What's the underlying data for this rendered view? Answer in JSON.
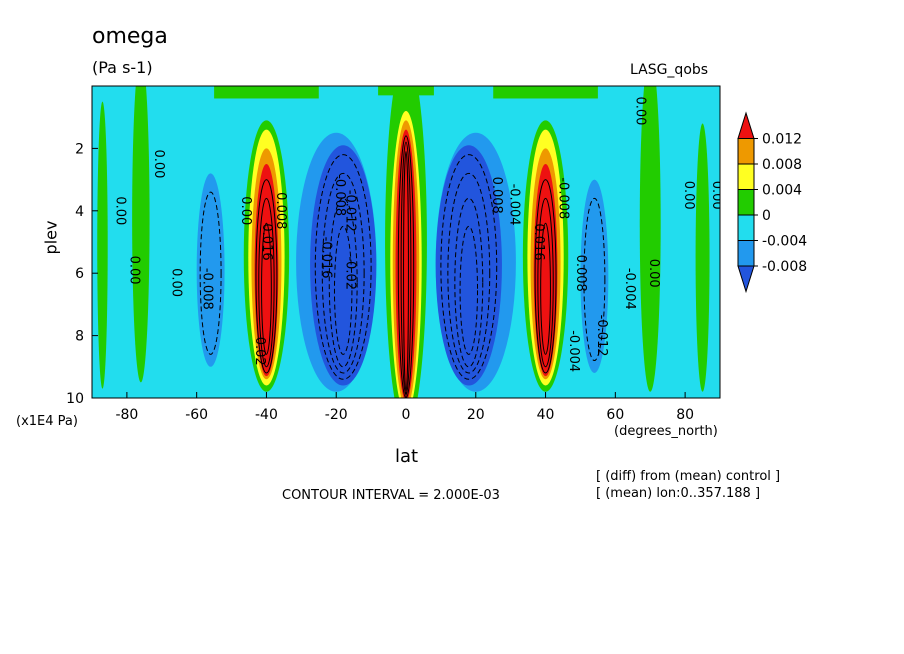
{
  "header": {
    "title": "omega",
    "units": "(Pa s-1)",
    "dataset": "LASG_qobs"
  },
  "footer": {
    "contour_interval": "CONTOUR INTERVAL = 2.000E-03",
    "note_diff": "[ (diff) from (mean) control ]",
    "note_mean": "[ (mean) lon:0..357.188 ]"
  },
  "colors": {
    "red": "#ee1111",
    "orange": "#ee9900",
    "yellow": "#ffff22",
    "green": "#22cc00",
    "cyan": "#22ddee",
    "lightblue": "#2299ee",
    "blue": "#2255dd"
  },
  "chart_data": {
    "type": "heatmap",
    "title": "omega",
    "subtitle": "(Pa s-1)",
    "xlabel": "lat",
    "xunit": "(degrees_north)",
    "ylabel": "plev",
    "yunit": "(x1E4 Pa)",
    "xlim": [
      -90,
      90
    ],
    "ylim": [
      10,
      0
    ],
    "xticks": [
      -80,
      -60,
      -40,
      -20,
      0,
      20,
      40,
      60,
      80
    ],
    "yticks": [
      2,
      4,
      6,
      8,
      10
    ],
    "legend": {
      "position": "right",
      "labels": [
        "0.012",
        "0.008",
        "0.004",
        "0",
        "-0.004",
        "-0.008"
      ],
      "bands": [
        "red",
        "orange",
        "yellow",
        "green",
        "cyan",
        "lightblue",
        "blue"
      ]
    },
    "contour_labels": [
      {
        "text": "0.00",
        "lat": -83,
        "plev": 4.0
      },
      {
        "text": "0.00",
        "lat": -79,
        "plev": 5.9
      },
      {
        "text": "0.00",
        "lat": -72,
        "plev": 2.5
      },
      {
        "text": "0.00",
        "lat": -67,
        "plev": 6.3
      },
      {
        "text": "-0.008",
        "lat": -58,
        "plev": 6.5
      },
      {
        "text": "0.00",
        "lat": -47,
        "plev": 4.0
      },
      {
        "text": "0.016",
        "lat": -41,
        "plev": 5.0
      },
      {
        "text": "0.008",
        "lat": -37,
        "plev": 4.0
      },
      {
        "text": "0.02",
        "lat": -43,
        "plev": 8.5
      },
      {
        "text": "-0.016",
        "lat": -24,
        "plev": 5.5
      },
      {
        "text": "-0.008",
        "lat": -20,
        "plev": 3.5
      },
      {
        "text": "-0.012",
        "lat": -17,
        "plev": 4.0
      },
      {
        "text": "-0.02",
        "lat": -17,
        "plev": 6.0
      },
      {
        "text": "0.008",
        "lat": 25,
        "plev": 3.5
      },
      {
        "text": "-0.004",
        "lat": 30,
        "plev": 3.8
      },
      {
        "text": "0.016",
        "lat": 37,
        "plev": 5.0
      },
      {
        "text": "-0.008",
        "lat": 44,
        "plev": 3.6
      },
      {
        "text": "-0.004",
        "lat": 47,
        "plev": 8.5
      },
      {
        "text": "0.008",
        "lat": 49,
        "plev": 6.0
      },
      {
        "text": "-0.012",
        "lat": 55,
        "plev": 8.0
      },
      {
        "text": "-0.004",
        "lat": 63,
        "plev": 6.5
      },
      {
        "text": "0.00",
        "lat": 70,
        "plev": 6.0
      },
      {
        "text": "0.00",
        "lat": 66,
        "plev": 0.8
      },
      {
        "text": "0.00",
        "lat": 80,
        "plev": 3.5
      },
      {
        "text": "0.00",
        "lat": 88,
        "plev": 3.5
      }
    ]
  }
}
